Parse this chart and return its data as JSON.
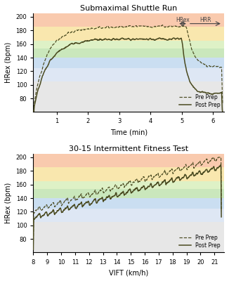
{
  "title1": "Submaximal Shuttle Run",
  "title2": "30-15 Intermittent Fitness Test",
  "xlabel1": "Time (min)",
  "xlabel2": "VIFT (km/h)",
  "ylabel": "HRex (bpm)",
  "ylim": [
    60,
    205
  ],
  "yticks": [
    80,
    100,
    120,
    140,
    160,
    180,
    200
  ],
  "zones": [
    [
      185,
      205,
      "#f5a878"
    ],
    [
      165,
      185,
      "#f5d878"
    ],
    [
      153,
      165,
      "#c8e8a0"
    ],
    [
      140,
      153,
      "#a8d890"
    ],
    [
      125,
      140,
      "#a8c8e8"
    ],
    [
      105,
      125,
      "#c8d8ee"
    ],
    [
      60,
      105,
      "#d8d8d8"
    ]
  ],
  "line_color": "#4a4a20",
  "legend_pre": "Pre Prep",
  "legend_post": "Post Prep",
  "hrex_label": "HRex",
  "hrr_label": "HRR",
  "figsize": [
    3.26,
    4.0
  ],
  "dpi": 100
}
